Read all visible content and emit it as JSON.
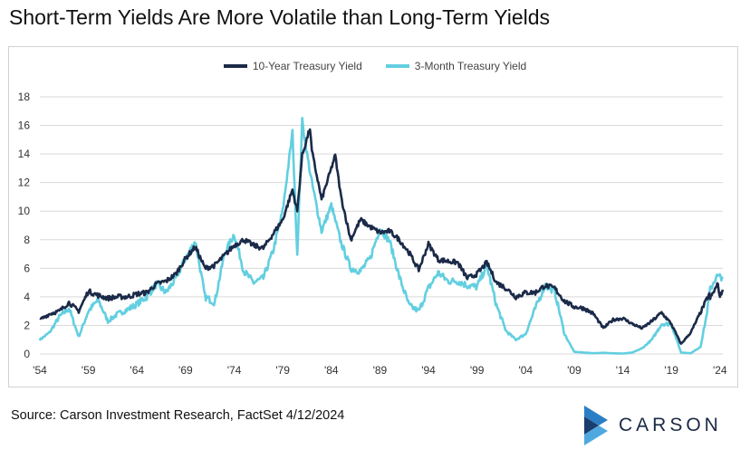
{
  "title": "Short-Term Yields Are More Volatile than Long-Term Yields",
  "source": "Source: Carson Investment Research, FactSet 4/12/2024",
  "logo": {
    "text": "CARSON",
    "icon": "carson-chevron-logo"
  },
  "colors": {
    "ten_year": "#1b2a48",
    "three_month": "#62cfe0",
    "grid": "#d9d9d9",
    "logo_blue": "#2a7fc4"
  },
  "chart_data": {
    "type": "line",
    "xlim": [
      1954,
      2024.3
    ],
    "ylim": [
      0,
      18
    ],
    "yticks": [
      0,
      2,
      4,
      6,
      8,
      10,
      12,
      14,
      16,
      18
    ],
    "xticks": [
      {
        "value": 1954,
        "label": "'54"
      },
      {
        "value": 1959,
        "label": "'59"
      },
      {
        "value": 1964,
        "label": "'64"
      },
      {
        "value": 1969,
        "label": "'69"
      },
      {
        "value": 1974,
        "label": "'74"
      },
      {
        "value": 1979,
        "label": "'79"
      },
      {
        "value": 1984,
        "label": "'84"
      },
      {
        "value": 1989,
        "label": "'89"
      },
      {
        "value": 1994,
        "label": "'94"
      },
      {
        "value": 1999,
        "label": "'99"
      },
      {
        "value": 2004,
        "label": "'04"
      },
      {
        "value": 2009,
        "label": "'09"
      },
      {
        "value": 2014,
        "label": "'14"
      },
      {
        "value": 2019,
        "label": "'19"
      },
      {
        "value": 2024,
        "label": "'24"
      }
    ],
    "grid": "horizontal",
    "legend_position": "top-center",
    "series": [
      {
        "name": "10-Year Treasury Yield",
        "color": "#1b2a48",
        "points": [
          [
            1954,
            2.4
          ],
          [
            1955,
            2.8
          ],
          [
            1956,
            3.0
          ],
          [
            1957,
            3.6
          ],
          [
            1958,
            3.0
          ],
          [
            1959,
            4.4
          ],
          [
            1960,
            4.1
          ],
          [
            1961,
            3.9
          ],
          [
            1962,
            4.0
          ],
          [
            1963,
            4.0
          ],
          [
            1964,
            4.2
          ],
          [
            1965,
            4.3
          ],
          [
            1966,
            4.9
          ],
          [
            1967,
            5.1
          ],
          [
            1968,
            5.6
          ],
          [
            1969,
            6.7
          ],
          [
            1970,
            7.5
          ],
          [
            1971,
            6.0
          ],
          [
            1972,
            6.2
          ],
          [
            1973,
            6.9
          ],
          [
            1974,
            7.6
          ],
          [
            1975,
            8.0
          ],
          [
            1976,
            7.6
          ],
          [
            1977,
            7.4
          ],
          [
            1978,
            8.4
          ],
          [
            1979,
            9.4
          ],
          [
            1980,
            11.5
          ],
          [
            1980.5,
            10.0
          ],
          [
            1981,
            13.9
          ],
          [
            1981.8,
            15.8
          ],
          [
            1982,
            14.2
          ],
          [
            1983,
            10.8
          ],
          [
            1984,
            13.0
          ],
          [
            1984.4,
            13.9
          ],
          [
            1985,
            11.0
          ],
          [
            1986,
            8.0
          ],
          [
            1987,
            9.4
          ],
          [
            1988,
            8.9
          ],
          [
            1989,
            8.5
          ],
          [
            1990,
            8.6
          ],
          [
            1991,
            8.0
          ],
          [
            1992,
            7.1
          ],
          [
            1993,
            5.9
          ],
          [
            1994,
            7.7
          ],
          [
            1995,
            6.6
          ],
          [
            1996,
            6.5
          ],
          [
            1997,
            6.4
          ],
          [
            1998,
            5.3
          ],
          [
            1999,
            5.6
          ],
          [
            2000,
            6.4
          ],
          [
            2001,
            5.0
          ],
          [
            2002,
            4.6
          ],
          [
            2003,
            4.0
          ],
          [
            2004,
            4.3
          ],
          [
            2005,
            4.3
          ],
          [
            2006,
            4.8
          ],
          [
            2007,
            4.6
          ],
          [
            2008,
            3.7
          ],
          [
            2009,
            3.3
          ],
          [
            2010,
            3.2
          ],
          [
            2011,
            2.8
          ],
          [
            2012,
            1.8
          ],
          [
            2013,
            2.4
          ],
          [
            2014,
            2.5
          ],
          [
            2015,
            2.1
          ],
          [
            2016,
            1.8
          ],
          [
            2017,
            2.3
          ],
          [
            2018,
            2.9
          ],
          [
            2019,
            2.1
          ],
          [
            2020,
            0.7
          ],
          [
            2021,
            1.5
          ],
          [
            2022,
            2.9
          ],
          [
            2022.9,
            4.2
          ],
          [
            2023,
            3.9
          ],
          [
            2023.8,
            4.9
          ],
          [
            2024,
            4.0
          ],
          [
            2024.3,
            4.5
          ]
        ]
      },
      {
        "name": "3-Month Treasury Yield",
        "color": "#62cfe0",
        "points": [
          [
            1954,
            1.0
          ],
          [
            1955,
            1.5
          ],
          [
            1956,
            2.6
          ],
          [
            1957,
            3.2
          ],
          [
            1958,
            1.2
          ],
          [
            1959,
            3.0
          ],
          [
            1960,
            3.8
          ],
          [
            1961,
            2.3
          ],
          [
            1962,
            2.8
          ],
          [
            1963,
            3.1
          ],
          [
            1964,
            3.5
          ],
          [
            1965,
            4.0
          ],
          [
            1966,
            4.9
          ],
          [
            1967,
            4.3
          ],
          [
            1968,
            5.3
          ],
          [
            1969,
            6.7
          ],
          [
            1970,
            7.9
          ],
          [
            1971,
            4.0
          ],
          [
            1972,
            3.6
          ],
          [
            1973,
            7.0
          ],
          [
            1974,
            8.4
          ],
          [
            1975,
            5.8
          ],
          [
            1976,
            5.0
          ],
          [
            1977,
            5.3
          ],
          [
            1978,
            7.2
          ],
          [
            1979,
            10.0
          ],
          [
            1980,
            15.5
          ],
          [
            1980.5,
            7.0
          ],
          [
            1981,
            16.3
          ],
          [
            1981.5,
            14.0
          ],
          [
            1982,
            12.0
          ],
          [
            1983,
            8.6
          ],
          [
            1984,
            10.4
          ],
          [
            1985,
            7.8
          ],
          [
            1986,
            6.0
          ],
          [
            1987,
            5.8
          ],
          [
            1988,
            6.7
          ],
          [
            1989,
            8.8
          ],
          [
            1990,
            7.9
          ],
          [
            1991,
            5.4
          ],
          [
            1992,
            3.4
          ],
          [
            1993,
            3.0
          ],
          [
            1994,
            4.6
          ],
          [
            1995,
            5.7
          ],
          [
            1996,
            5.1
          ],
          [
            1997,
            5.1
          ],
          [
            1998,
            4.8
          ],
          [
            1999,
            4.7
          ],
          [
            2000,
            6.2
          ],
          [
            2001,
            3.4
          ],
          [
            2002,
            1.6
          ],
          [
            2003,
            1.0
          ],
          [
            2004,
            1.4
          ],
          [
            2005,
            3.2
          ],
          [
            2006,
            4.8
          ],
          [
            2007,
            4.4
          ],
          [
            2008,
            1.4
          ],
          [
            2009,
            0.15
          ],
          [
            2010,
            0.1
          ],
          [
            2011,
            0.05
          ],
          [
            2012,
            0.08
          ],
          [
            2013,
            0.05
          ],
          [
            2014,
            0.03
          ],
          [
            2015,
            0.1
          ],
          [
            2016,
            0.4
          ],
          [
            2017,
            1.0
          ],
          [
            2018,
            2.1
          ],
          [
            2019,
            2.1
          ],
          [
            2020,
            0.1
          ],
          [
            2021,
            0.05
          ],
          [
            2022,
            0.5
          ],
          [
            2022.6,
            2.6
          ],
          [
            2023,
            4.5
          ],
          [
            2023.6,
            5.4
          ],
          [
            2024,
            5.4
          ],
          [
            2024.3,
            5.4
          ]
        ]
      }
    ]
  }
}
